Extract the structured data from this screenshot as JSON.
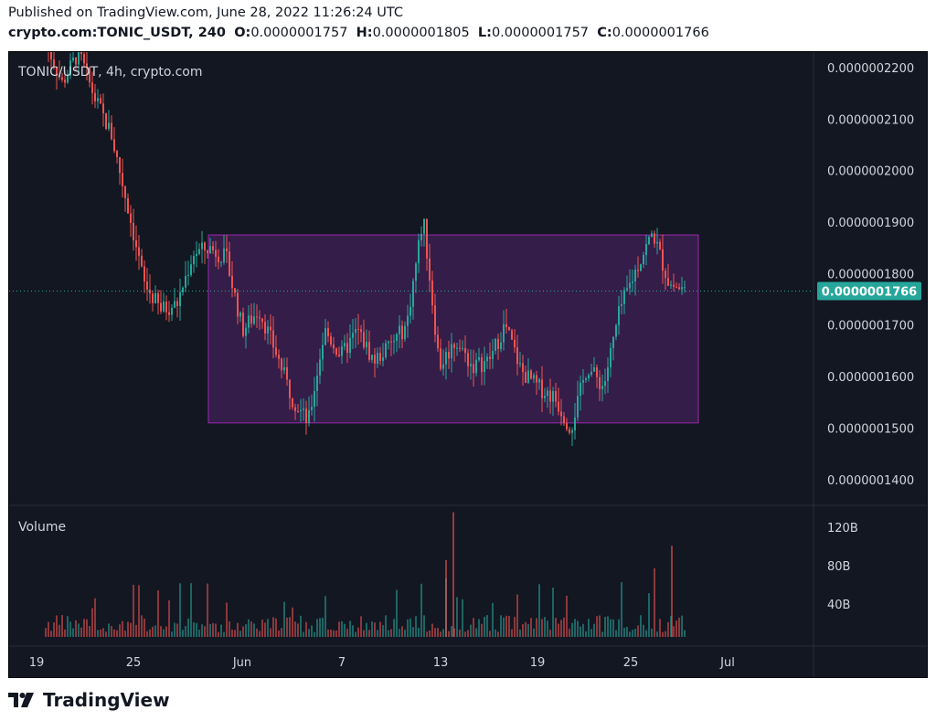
{
  "header": {
    "published": "Published on TradingView.com, June 28, 2022 11:26:24 UTC",
    "symbol": "crypto.com:TONIC_USDT, 240",
    "o_label": "O:",
    "o_value": "0.0000001757",
    "h_label": "H:",
    "h_value": "0.0000001805",
    "l_label": "L:",
    "l_value": "0.0000001757",
    "c_label": "C:",
    "c_value": "0.0000001766"
  },
  "chart": {
    "legend": "TONIC/USDT, 4h, crypto.com",
    "volume_label": "Volume",
    "last_price": "0.0000001766",
    "colors": {
      "background": "#131722",
      "up": "#26a69a",
      "down": "#ef5350",
      "grid_axis_text": "#d1d4dc",
      "box_fill": "#3b1f4f",
      "box_border": "#9c27b0",
      "price_tag": "#26a69a"
    }
  },
  "chart_data": {
    "type": "candlestick",
    "price_axis_ticks": [
      "0.0000002200",
      "0.0000002100",
      "0.0000002000",
      "0.0000001900",
      "0.0000001800",
      "0.0000001700",
      "0.0000001600",
      "0.0000001500",
      "0.0000001400"
    ],
    "price_range": [
      1.35e-07,
      2.23e-07
    ],
    "volume_axis_ticks": [
      "120B",
      "80B",
      "40B"
    ],
    "time_axis_ticks": [
      "19",
      "25",
      "Jun",
      "7",
      "13",
      "19",
      "25",
      "Jul"
    ],
    "range_box": {
      "top_price": 1.875e-07,
      "bottom_price": 1.51e-07,
      "start": "May 29",
      "end": "Jun 29"
    },
    "price_path": [
      {
        "t": "May 17",
        "close": 2.25e-07
      },
      {
        "t": "May 19",
        "close": 2.17e-07
      },
      {
        "t": "May 21",
        "close": 2.23e-07
      },
      {
        "t": "May 23",
        "close": 2.14e-07
      },
      {
        "t": "May 25",
        "close": 2.07e-07
      },
      {
        "t": "May 26",
        "close": 1.93e-07
      },
      {
        "t": "May 27",
        "close": 1.78e-07
      },
      {
        "t": "May 28",
        "close": 1.73e-07
      },
      {
        "t": "May 29",
        "close": 1.74e-07
      },
      {
        "t": "May 30",
        "close": 1.84e-07
      },
      {
        "t": "May 31",
        "close": 1.85e-07
      },
      {
        "t": "Jun 1",
        "close": 1.83e-07
      },
      {
        "t": "Jun 2",
        "close": 1.69e-07
      },
      {
        "t": "Jun 3",
        "close": 1.73e-07
      },
      {
        "t": "Jun 4",
        "close": 1.65e-07
      },
      {
        "t": "Jun 5",
        "close": 1.56e-07
      },
      {
        "t": "Jun 6",
        "close": 1.51e-07
      },
      {
        "t": "Jun 7",
        "close": 1.69e-07
      },
      {
        "t": "Jun 8",
        "close": 1.64e-07
      },
      {
        "t": "Jun 9",
        "close": 1.69e-07
      },
      {
        "t": "Jun 10",
        "close": 1.63e-07
      },
      {
        "t": "Jun 11",
        "close": 1.66e-07
      },
      {
        "t": "Jun 12",
        "close": 1.7e-07
      },
      {
        "t": "Jun 13",
        "close": 1.91e-07
      },
      {
        "t": "Jun 14",
        "close": 1.62e-07
      },
      {
        "t": "Jun 15",
        "close": 1.67e-07
      },
      {
        "t": "Jun 16",
        "close": 1.62e-07
      },
      {
        "t": "Jun 17",
        "close": 1.63e-07
      },
      {
        "t": "Jun 18",
        "close": 1.7e-07
      },
      {
        "t": "Jun 19",
        "close": 1.61e-07
      },
      {
        "t": "Jun 20",
        "close": 1.58e-07
      },
      {
        "t": "Jun 21",
        "close": 1.56e-07
      },
      {
        "t": "Jun 22",
        "close": 1.5e-07
      },
      {
        "t": "Jun 23",
        "close": 1.62e-07
      },
      {
        "t": "Jun 24",
        "close": 1.58e-07
      },
      {
        "t": "Jun 25",
        "close": 1.73e-07
      },
      {
        "t": "Jun 26",
        "close": 1.81e-07
      },
      {
        "t": "Jun 26b",
        "close": 1.88e-07
      },
      {
        "t": "Jun 27",
        "close": 1.78e-07
      },
      {
        "t": "Jun 28",
        "close": 1.766e-07
      }
    ],
    "volume_peaks": [
      {
        "t": "Jun 13",
        "value": 130
      },
      {
        "t": "Jun 26",
        "value": 95
      },
      {
        "t": "Jun 12",
        "value": 80
      }
    ]
  }
}
